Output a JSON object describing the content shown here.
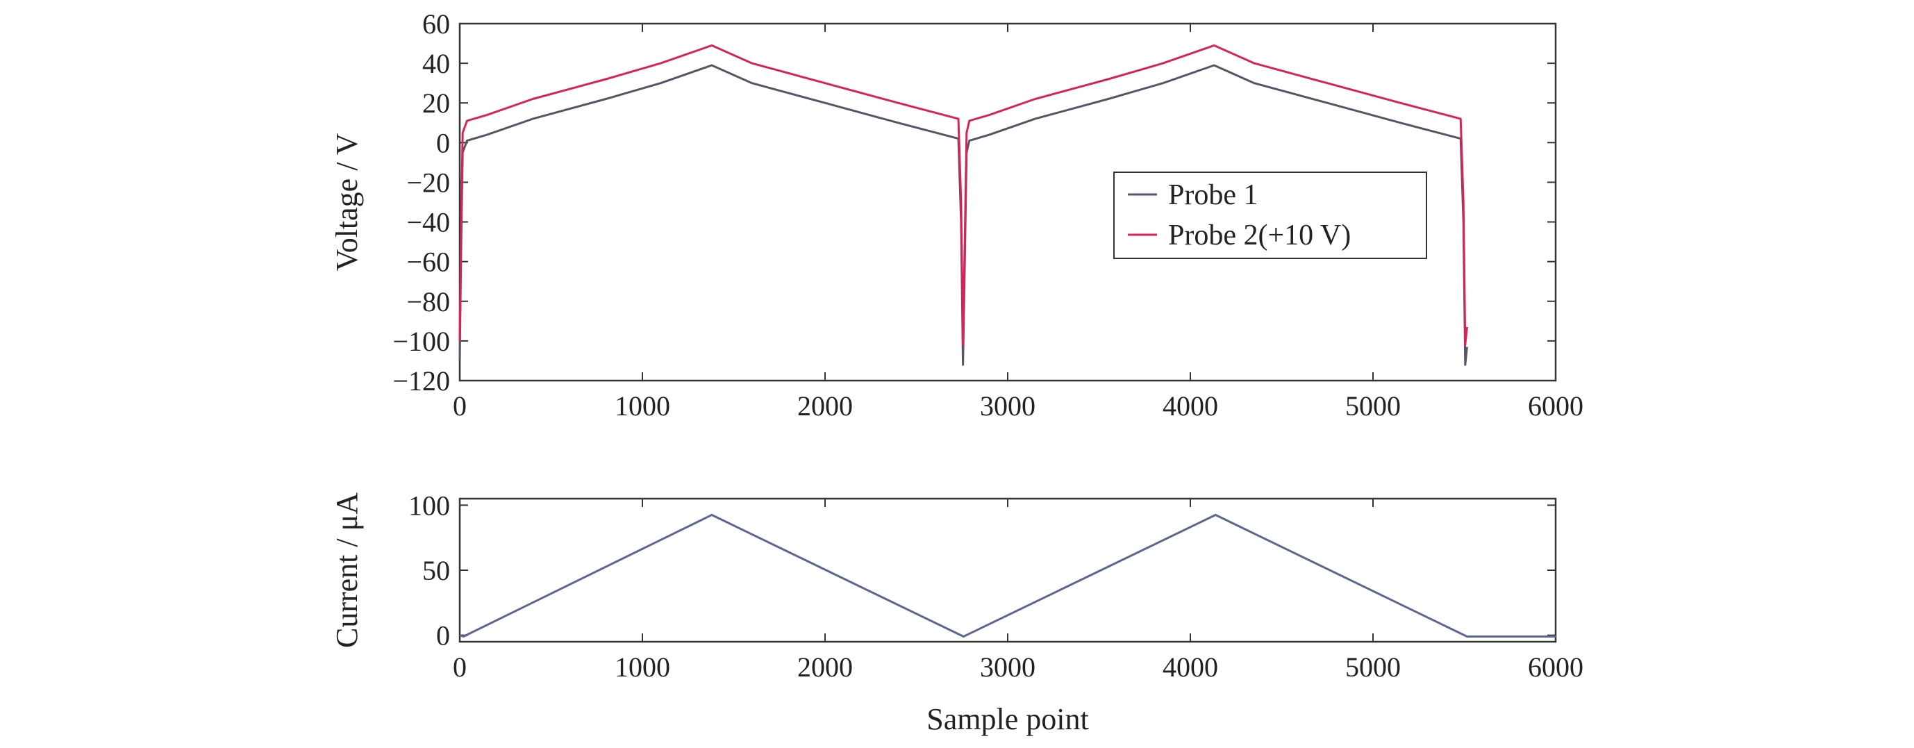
{
  "chart_data": [
    {
      "type": "line",
      "title": "",
      "xlabel": "",
      "ylabel": "Voltage / V",
      "xlim": [
        0,
        6000
      ],
      "ylim": [
        -120,
        60
      ],
      "xticks": [
        0,
        1000,
        2000,
        3000,
        4000,
        5000,
        6000
      ],
      "yticks": [
        60,
        40,
        20,
        0,
        -20,
        -40,
        -60,
        -80,
        -100,
        -120
      ],
      "xtick_labels": [
        "0",
        "1000",
        "2000",
        "3000",
        "4000",
        "5000",
        "6000"
      ],
      "ytick_labels": [
        "60",
        "40",
        "20",
        "0",
        "−20",
        "−40",
        "−60",
        "−80",
        "−100",
        "−120"
      ],
      "grid": false,
      "legend": "center-right",
      "series": [
        {
          "name": "Probe 1",
          "color": "#555566",
          "x": [
            0,
            8,
            16,
            40,
            150,
            400,
            800,
            1100,
            1380,
            1600,
            2000,
            2400,
            2730,
            2745,
            2755,
            2765,
            2775,
            2790,
            2900,
            3150,
            3550,
            3850,
            4130,
            4350,
            4750,
            5150,
            5480,
            5495,
            5505,
            5515
          ],
          "y": [
            -110,
            -50,
            -5,
            1,
            4,
            12,
            22,
            30,
            39,
            30,
            20,
            10,
            2,
            -40,
            -112,
            -60,
            -5,
            1,
            4,
            12,
            22,
            30,
            39,
            30,
            20,
            10,
            2,
            -40,
            -112,
            -103
          ]
        },
        {
          "name": "Probe 2(+10 V)",
          "color": "#d6245a",
          "x": [
            0,
            8,
            16,
            40,
            150,
            400,
            800,
            1100,
            1380,
            1600,
            2000,
            2400,
            2730,
            2745,
            2755,
            2765,
            2775,
            2790,
            2900,
            3150,
            3550,
            3850,
            4130,
            4350,
            4750,
            5150,
            5480,
            5495,
            5505,
            5515
          ],
          "y": [
            -100,
            -40,
            5,
            11,
            14,
            22,
            32,
            40,
            49,
            40,
            30,
            20,
            12,
            -30,
            -102,
            -50,
            5,
            11,
            14,
            22,
            32,
            40,
            49,
            40,
            30,
            20,
            12,
            -30,
            -102,
            -93
          ]
        }
      ]
    },
    {
      "type": "line",
      "title": "",
      "xlabel": "Sample point",
      "ylabel": "Current / μA",
      "xlim": [
        0,
        6000
      ],
      "ylim": [
        -5,
        105
      ],
      "xticks": [
        0,
        1000,
        2000,
        3000,
        4000,
        5000,
        6000
      ],
      "yticks": [
        100,
        50,
        0
      ],
      "xtick_labels": [
        "0",
        "1000",
        "2000",
        "3000",
        "4000",
        "5000",
        "6000"
      ],
      "ytick_labels": [
        "100",
        "50",
        "0"
      ],
      "grid": false,
      "series": [
        {
          "color": "#5c6690",
          "x": [
            0,
            20,
            1380,
            2758,
            4138,
            5515,
            6000
          ],
          "y": [
            0,
            -1,
            92.5,
            -1,
            92.5,
            -1,
            -1
          ]
        }
      ]
    }
  ]
}
